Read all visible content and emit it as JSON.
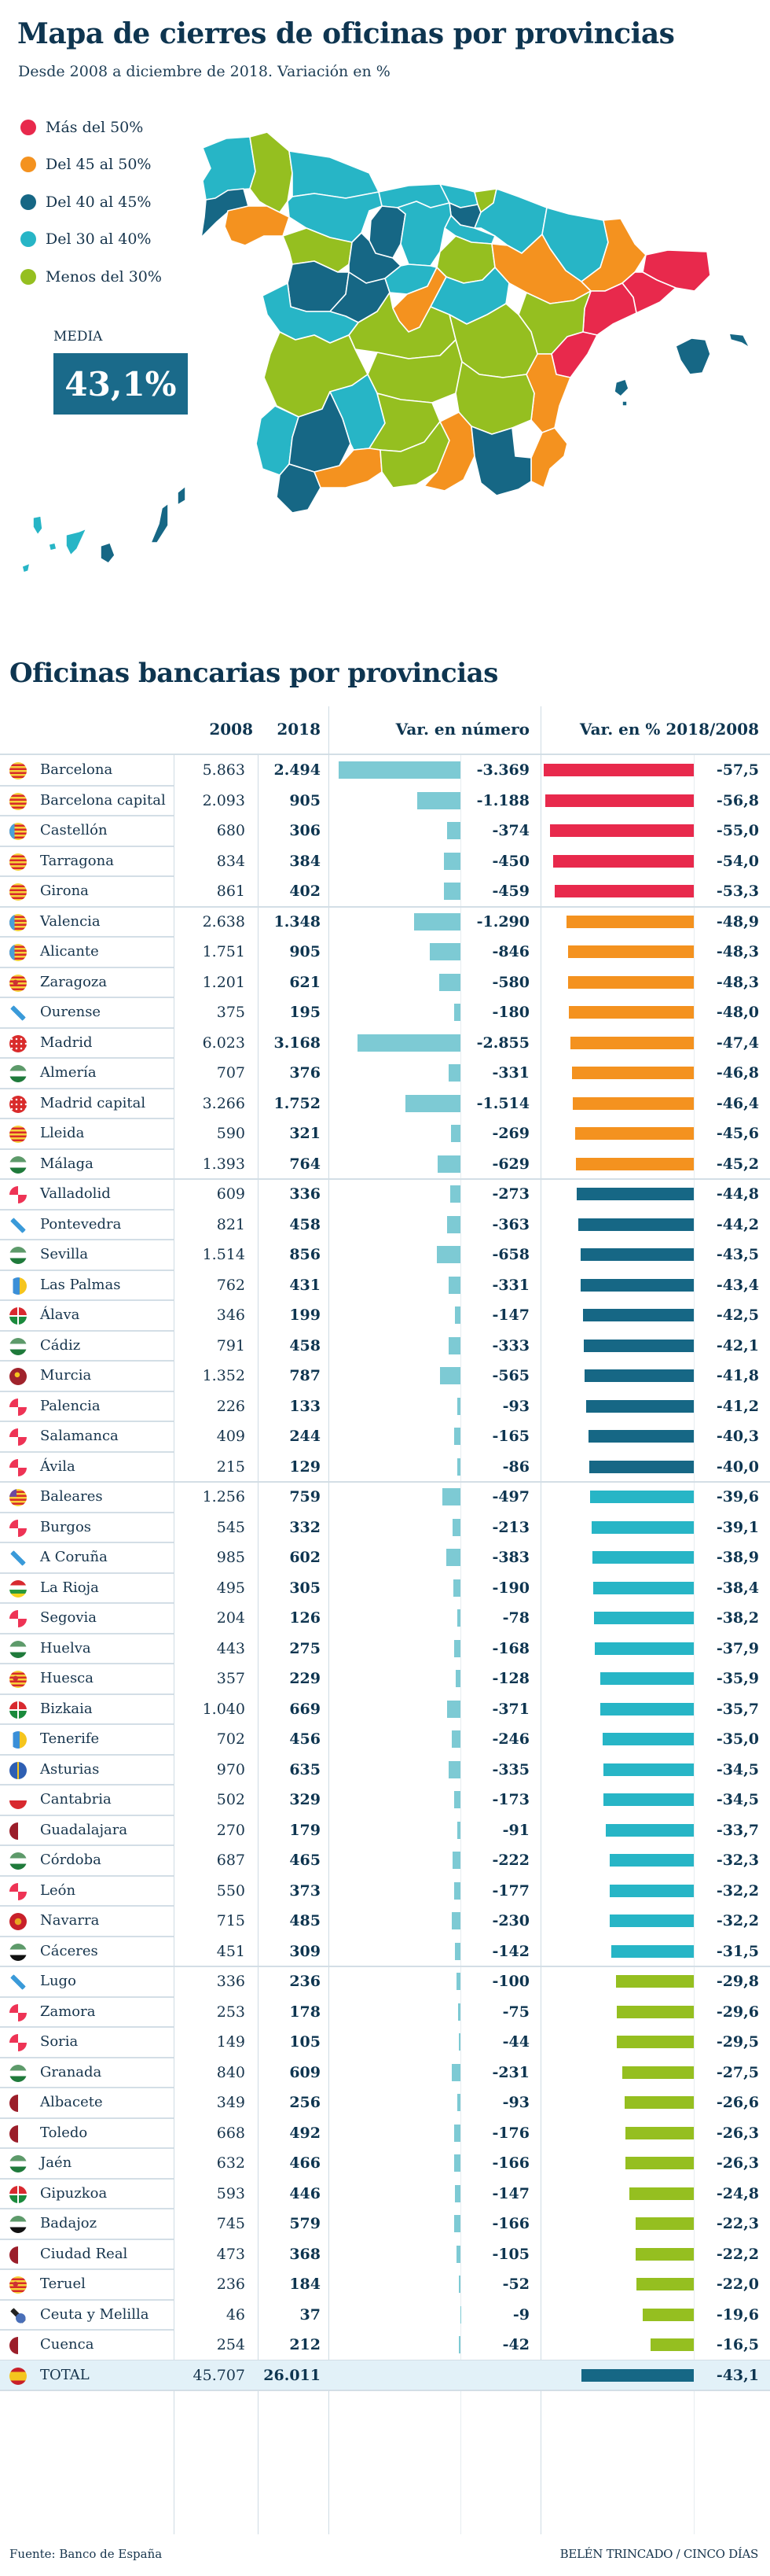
{
  "header": {
    "title": "Mapa de cierres de oficinas por provincias",
    "subtitle": "Desde 2008 a diciembre de 2018. Variación en %"
  },
  "colors": {
    "red": "#e8294c",
    "orange": "#f4921f",
    "darkblue": "#166785",
    "lightblue": "#27b5c6",
    "green": "#95bf20",
    "numbar": "#7dcad4",
    "text": "#0e3550",
    "total_bg": "#e2f1f8"
  },
  "legend": [
    {
      "label": "Más del 50%",
      "color": "#e8294c"
    },
    {
      "label": "Del 45 al 50%",
      "color": "#f4921f"
    },
    {
      "label": "Del 40 al 45%",
      "color": "#166785"
    },
    {
      "label": "Del 30 al 40%",
      "color": "#27b5c6"
    },
    {
      "label": "Menos del 30%",
      "color": "#95bf20"
    }
  ],
  "media": {
    "label": "MEDIA",
    "value": "43,1%"
  },
  "table": {
    "title": "Oficinas bancarias por provincias",
    "columns": [
      "",
      "2008",
      "2018",
      "Var. en número",
      "Var. en % 2018/2008"
    ]
  },
  "chart_data": {
    "type": "table",
    "title": "Oficinas bancarias por provincias",
    "columns": [
      "Provincia",
      "2008",
      "2018",
      "Var. en número",
      "Var. en % 2018/2008"
    ],
    "rows": [
      {
        "name": "Barcelona",
        "flag": "cataluna",
        "y2008": "5.863",
        "y2018": "2.494",
        "var": -3369,
        "var_label": "-3.369",
        "pct": -57.5,
        "pct_label": "-57,5",
        "cat": "red"
      },
      {
        "name": "Barcelona capital",
        "flag": "cataluna",
        "y2008": "2.093",
        "y2018": "905",
        "var": -1188,
        "var_label": "-1.188",
        "pct": -56.8,
        "pct_label": "-56,8",
        "cat": "red"
      },
      {
        "name": "Castellón",
        "flag": "valencia",
        "y2008": "680",
        "y2018": "306",
        "var": -374,
        "var_label": "-374",
        "pct": -55.0,
        "pct_label": "-55,0",
        "cat": "red"
      },
      {
        "name": "Tarragona",
        "flag": "cataluna",
        "y2008": "834",
        "y2018": "384",
        "var": -450,
        "var_label": "-450",
        "pct": -54.0,
        "pct_label": "-54,0",
        "cat": "red"
      },
      {
        "name": "Girona",
        "flag": "cataluna",
        "y2008": "861",
        "y2018": "402",
        "var": -459,
        "var_label": "-459",
        "pct": -53.3,
        "pct_label": "-53,3",
        "cat": "red",
        "group_end": true
      },
      {
        "name": "Valencia",
        "flag": "valencia",
        "y2008": "2.638",
        "y2018": "1.348",
        "var": -1290,
        "var_label": "-1.290",
        "pct": -48.9,
        "pct_label": "-48,9",
        "cat": "orange"
      },
      {
        "name": "Alicante",
        "flag": "valencia",
        "y2008": "1.751",
        "y2018": "905",
        "var": -846,
        "var_label": "-846",
        "pct": -48.3,
        "pct_label": "-48,3",
        "cat": "orange"
      },
      {
        "name": "Zaragoza",
        "flag": "aragon",
        "y2008": "1.201",
        "y2018": "621",
        "var": -580,
        "var_label": "-580",
        "pct": -48.3,
        "pct_label": "-48,3",
        "cat": "orange"
      },
      {
        "name": "Ourense",
        "flag": "galicia",
        "y2008": "375",
        "y2018": "195",
        "var": -180,
        "var_label": "-180",
        "pct": -48.0,
        "pct_label": "-48,0",
        "cat": "orange"
      },
      {
        "name": "Madrid",
        "flag": "madrid",
        "y2008": "6.023",
        "y2018": "3.168",
        "var": -2855,
        "var_label": "-2.855",
        "pct": -47.4,
        "pct_label": "-47,4",
        "cat": "orange"
      },
      {
        "name": "Almería",
        "flag": "andalucia",
        "y2008": "707",
        "y2018": "376",
        "var": -331,
        "var_label": "-331",
        "pct": -46.8,
        "pct_label": "-46,8",
        "cat": "orange"
      },
      {
        "name": "Madrid capital",
        "flag": "madrid",
        "y2008": "3.266",
        "y2018": "1.752",
        "var": -1514,
        "var_label": "-1.514",
        "pct": -46.4,
        "pct_label": "-46,4",
        "cat": "orange"
      },
      {
        "name": "Lleida",
        "flag": "cataluna",
        "y2008": "590",
        "y2018": "321",
        "var": -269,
        "var_label": "-269",
        "pct": -45.6,
        "pct_label": "-45,6",
        "cat": "orange"
      },
      {
        "name": "Málaga",
        "flag": "andalucia",
        "y2008": "1.393",
        "y2018": "764",
        "var": -629,
        "var_label": "-629",
        "pct": -45.2,
        "pct_label": "-45,2",
        "cat": "orange",
        "group_end": true
      },
      {
        "name": "Valladolid",
        "flag": "castillaleon",
        "y2008": "609",
        "y2018": "336",
        "var": -273,
        "var_label": "-273",
        "pct": -44.8,
        "pct_label": "-44,8",
        "cat": "darkblue"
      },
      {
        "name": "Pontevedra",
        "flag": "galicia",
        "y2008": "821",
        "y2018": "458",
        "var": -363,
        "var_label": "-363",
        "pct": -44.2,
        "pct_label": "-44,2",
        "cat": "darkblue"
      },
      {
        "name": "Sevilla",
        "flag": "andalucia",
        "y2008": "1.514",
        "y2018": "856",
        "var": -658,
        "var_label": "-658",
        "pct": -43.5,
        "pct_label": "-43,5",
        "cat": "darkblue"
      },
      {
        "name": "Las Palmas",
        "flag": "canarias",
        "y2008": "762",
        "y2018": "431",
        "var": -331,
        "var_label": "-331",
        "pct": -43.4,
        "pct_label": "-43,4",
        "cat": "darkblue"
      },
      {
        "name": "Álava",
        "flag": "euskadi",
        "y2008": "346",
        "y2018": "199",
        "var": -147,
        "var_label": "-147",
        "pct": -42.5,
        "pct_label": "-42,5",
        "cat": "darkblue"
      },
      {
        "name": "Cádiz",
        "flag": "andalucia",
        "y2008": "791",
        "y2018": "458",
        "var": -333,
        "var_label": "-333",
        "pct": -42.1,
        "pct_label": "-42,1",
        "cat": "darkblue"
      },
      {
        "name": "Murcia",
        "flag": "murcia",
        "y2008": "1.352",
        "y2018": "787",
        "var": -565,
        "var_label": "-565",
        "pct": -41.8,
        "pct_label": "-41,8",
        "cat": "darkblue"
      },
      {
        "name": "Palencia",
        "flag": "castillaleon",
        "y2008": "226",
        "y2018": "133",
        "var": -93,
        "var_label": "-93",
        "pct": -41.2,
        "pct_label": "-41,2",
        "cat": "darkblue"
      },
      {
        "name": "Salamanca",
        "flag": "castillaleon",
        "y2008": "409",
        "y2018": "244",
        "var": -165,
        "var_label": "-165",
        "pct": -40.3,
        "pct_label": "-40,3",
        "cat": "darkblue"
      },
      {
        "name": "Ávila",
        "flag": "castillaleon",
        "y2008": "215",
        "y2018": "129",
        "var": -86,
        "var_label": "-86",
        "pct": -40.0,
        "pct_label": "-40,0",
        "cat": "darkblue",
        "group_end": true
      },
      {
        "name": "Baleares",
        "flag": "baleares",
        "y2008": "1.256",
        "y2018": "759",
        "var": -497,
        "var_label": "-497",
        "pct": -39.6,
        "pct_label": "-39,6",
        "cat": "lightblue"
      },
      {
        "name": "Burgos",
        "flag": "castillaleon",
        "y2008": "545",
        "y2018": "332",
        "var": -213,
        "var_label": "-213",
        "pct": -39.1,
        "pct_label": "-39,1",
        "cat": "lightblue"
      },
      {
        "name": "A Coruña",
        "flag": "galicia",
        "y2008": "985",
        "y2018": "602",
        "var": -383,
        "var_label": "-383",
        "pct": -38.9,
        "pct_label": "-38,9",
        "cat": "lightblue"
      },
      {
        "name": "La Rioja",
        "flag": "rioja",
        "y2008": "495",
        "y2018": "305",
        "var": -190,
        "var_label": "-190",
        "pct": -38.4,
        "pct_label": "-38,4",
        "cat": "lightblue"
      },
      {
        "name": "Segovia",
        "flag": "castillaleon",
        "y2008": "204",
        "y2018": "126",
        "var": -78,
        "var_label": "-78",
        "pct": -38.2,
        "pct_label": "-38,2",
        "cat": "lightblue"
      },
      {
        "name": "Huelva",
        "flag": "andalucia",
        "y2008": "443",
        "y2018": "275",
        "var": -168,
        "var_label": "-168",
        "pct": -37.9,
        "pct_label": "-37,9",
        "cat": "lightblue"
      },
      {
        "name": "Huesca",
        "flag": "aragon",
        "y2008": "357",
        "y2018": "229",
        "var": -128,
        "var_label": "-128",
        "pct": -35.9,
        "pct_label": "-35,9",
        "cat": "lightblue"
      },
      {
        "name": "Bizkaia",
        "flag": "euskadi",
        "y2008": "1.040",
        "y2018": "669",
        "var": -371,
        "var_label": "-371",
        "pct": -35.7,
        "pct_label": "-35,7",
        "cat": "lightblue"
      },
      {
        "name": "Tenerife",
        "flag": "canarias",
        "y2008": "702",
        "y2018": "456",
        "var": -246,
        "var_label": "-246",
        "pct": -35.0,
        "pct_label": "-35,0",
        "cat": "lightblue"
      },
      {
        "name": "Asturias",
        "flag": "asturias",
        "y2008": "970",
        "y2018": "635",
        "var": -335,
        "var_label": "-335",
        "pct": -34.5,
        "pct_label": "-34,5",
        "cat": "lightblue"
      },
      {
        "name": "Cantabria",
        "flag": "cantabria",
        "y2008": "502",
        "y2018": "329",
        "var": -173,
        "var_label": "-173",
        "pct": -34.5,
        "pct_label": "-34,5",
        "cat": "lightblue"
      },
      {
        "name": "Guadalajara",
        "flag": "castillamancha",
        "y2008": "270",
        "y2018": "179",
        "var": -91,
        "var_label": "-91",
        "pct": -33.7,
        "pct_label": "-33,7",
        "cat": "lightblue"
      },
      {
        "name": "Córdoba",
        "flag": "andalucia",
        "y2008": "687",
        "y2018": "465",
        "var": -222,
        "var_label": "-222",
        "pct": -32.3,
        "pct_label": "-32,3",
        "cat": "lightblue"
      },
      {
        "name": "León",
        "flag": "castillaleon",
        "y2008": "550",
        "y2018": "373",
        "var": -177,
        "var_label": "-177",
        "pct": -32.2,
        "pct_label": "-32,2",
        "cat": "lightblue"
      },
      {
        "name": "Navarra",
        "flag": "navarra",
        "y2008": "715",
        "y2018": "485",
        "var": -230,
        "var_label": "-230",
        "pct": -32.2,
        "pct_label": "-32,2",
        "cat": "lightblue"
      },
      {
        "name": "Cáceres",
        "flag": "extremadura",
        "y2008": "451",
        "y2018": "309",
        "var": -142,
        "var_label": "-142",
        "pct": -31.5,
        "pct_label": "-31,5",
        "cat": "lightblue",
        "group_end": true
      },
      {
        "name": "Lugo",
        "flag": "galicia",
        "y2008": "336",
        "y2018": "236",
        "var": -100,
        "var_label": "-100",
        "pct": -29.8,
        "pct_label": "-29,8",
        "cat": "green"
      },
      {
        "name": "Zamora",
        "flag": "castillaleon",
        "y2008": "253",
        "y2018": "178",
        "var": -75,
        "var_label": "-75",
        "pct": -29.6,
        "pct_label": "-29,6",
        "cat": "green"
      },
      {
        "name": "Soria",
        "flag": "castillaleon",
        "y2008": "149",
        "y2018": "105",
        "var": -44,
        "var_label": "-44",
        "pct": -29.5,
        "pct_label": "-29,5",
        "cat": "green"
      },
      {
        "name": "Granada",
        "flag": "andalucia",
        "y2008": "840",
        "y2018": "609",
        "var": -231,
        "var_label": "-231",
        "pct": -27.5,
        "pct_label": "-27,5",
        "cat": "green"
      },
      {
        "name": "Albacete",
        "flag": "castillamancha",
        "y2008": "349",
        "y2018": "256",
        "var": -93,
        "var_label": "-93",
        "pct": -26.6,
        "pct_label": "-26,6",
        "cat": "green"
      },
      {
        "name": "Toledo",
        "flag": "castillamancha",
        "y2008": "668",
        "y2018": "492",
        "var": -176,
        "var_label": "-176",
        "pct": -26.3,
        "pct_label": "-26,3",
        "cat": "green"
      },
      {
        "name": "Jaén",
        "flag": "andalucia",
        "y2008": "632",
        "y2018": "466",
        "var": -166,
        "var_label": "-166",
        "pct": -26.3,
        "pct_label": "-26,3",
        "cat": "green"
      },
      {
        "name": "Gipuzkoa",
        "flag": "euskadi",
        "y2008": "593",
        "y2018": "446",
        "var": -147,
        "var_label": "-147",
        "pct": -24.8,
        "pct_label": "-24,8",
        "cat": "green"
      },
      {
        "name": "Badajoz",
        "flag": "extremadura",
        "y2008": "745",
        "y2018": "579",
        "var": -166,
        "var_label": "-166",
        "pct": -22.3,
        "pct_label": "-22,3",
        "cat": "green"
      },
      {
        "name": "Ciudad Real",
        "flag": "castillamancha",
        "y2008": "473",
        "y2018": "368",
        "var": -105,
        "var_label": "-105",
        "pct": -22.2,
        "pct_label": "-22,2",
        "cat": "green"
      },
      {
        "name": "Teruel",
        "flag": "aragon",
        "y2008": "236",
        "y2018": "184",
        "var": -52,
        "var_label": "-52",
        "pct": -22.0,
        "pct_label": "-22,0",
        "cat": "green"
      },
      {
        "name": "Ceuta y Melilla",
        "flag": "ceutamelilla",
        "y2008": "46",
        "y2018": "37",
        "var": -9,
        "var_label": "-9",
        "pct": -19.6,
        "pct_label": "-19,6",
        "cat": "green"
      },
      {
        "name": "Cuenca",
        "flag": "castillamancha",
        "y2008": "254",
        "y2018": "212",
        "var": -42,
        "var_label": "-42",
        "pct": -16.5,
        "pct_label": "-16,5",
        "cat": "green",
        "group_end": true
      }
    ],
    "total": {
      "name": "TOTAL",
      "flag": "espana",
      "y2008": "45.707",
      "y2018": "26.011",
      "pct": -43.1,
      "pct_label": "-43,1",
      "cat": "darkblue"
    },
    "var_axis_max": 3369,
    "pct_axis_max": 57.5
  },
  "footer": {
    "source": "Fuente: Banco de España",
    "credit": "BELÉN TRINCADO / CINCO DÍAS"
  }
}
